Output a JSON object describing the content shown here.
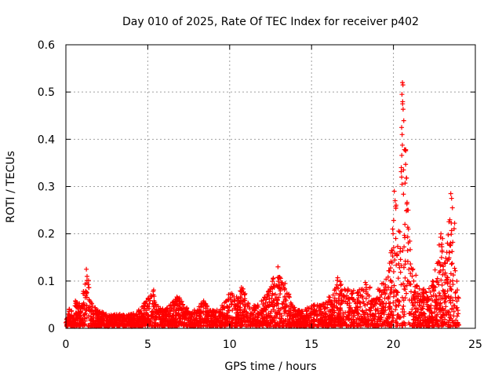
{
  "chart_data": {
    "type": "scatter",
    "title": "Day 010 of 2025, Rate Of TEC Index for receiver p402",
    "xlabel": "GPS time / hours",
    "ylabel": "ROTI / TECUs",
    "xlim": [
      0,
      25
    ],
    "ylim": [
      0,
      0.6
    ],
    "xticks": [
      "0",
      "5",
      "10",
      "15",
      "20",
      "25"
    ],
    "yticks": [
      "0",
      "0.1",
      "0.2",
      "0.3",
      "0.4",
      "0.5",
      "0.6"
    ],
    "grid": true,
    "marker": "+",
    "color": "#ff0000",
    "envelope": {
      "x": [
        0,
        0.3,
        0.6,
        0.9,
        1.2,
        1.35,
        1.6,
        2.0,
        2.5,
        3.0,
        3.5,
        4.0,
        4.5,
        4.9,
        5.1,
        5.3,
        5.6,
        6.0,
        6.4,
        6.8,
        7.1,
        7.5,
        8.0,
        8.4,
        8.8,
        9.2,
        9.6,
        10.0,
        10.3,
        10.8,
        11.2,
        11.6,
        12.0,
        12.4,
        12.8,
        13.0,
        13.4,
        13.8,
        14.2,
        14.6,
        15.0,
        15.4,
        15.8,
        16.2,
        16.6,
        17.0,
        17.4,
        17.8,
        18.2,
        18.6,
        19.0,
        19.4,
        19.7,
        19.9,
        20.1,
        20.3,
        20.6,
        20.9,
        21.2,
        21.6,
        22.0,
        22.3,
        22.6,
        22.9,
        23.2,
        23.5,
        23.7,
        23.9,
        24.0
      ],
      "y": [
        0.03,
        0.05,
        0.06,
        0.05,
        0.1,
        0.12,
        0.05,
        0.04,
        0.03,
        0.03,
        0.03,
        0.03,
        0.04,
        0.06,
        0.07,
        0.09,
        0.05,
        0.04,
        0.05,
        0.07,
        0.06,
        0.04,
        0.04,
        0.06,
        0.04,
        0.04,
        0.05,
        0.08,
        0.07,
        0.09,
        0.05,
        0.05,
        0.06,
        0.08,
        0.12,
        0.11,
        0.1,
        0.05,
        0.04,
        0.04,
        0.05,
        0.05,
        0.06,
        0.07,
        0.11,
        0.09,
        0.08,
        0.08,
        0.1,
        0.09,
        0.08,
        0.1,
        0.12,
        0.18,
        0.29,
        0.22,
        0.52,
        0.24,
        0.13,
        0.09,
        0.08,
        0.09,
        0.16,
        0.2,
        0.15,
        0.28,
        0.26,
        0.12,
        0.06
      ]
    },
    "peaks": [
      {
        "x": 20.55,
        "y": 0.52
      },
      {
        "x": 20.58,
        "y": 0.515
      },
      {
        "x": 20.52,
        "y": 0.495
      },
      {
        "x": 20.56,
        "y": 0.475
      },
      {
        "x": 20.5,
        "y": 0.425
      },
      {
        "x": 20.53,
        "y": 0.41
      },
      {
        "x": 20.48,
        "y": 0.34
      },
      {
        "x": 20.5,
        "y": 0.32
      },
      {
        "x": 20.05,
        "y": 0.29
      },
      {
        "x": 20.1,
        "y": 0.27
      },
      {
        "x": 23.5,
        "y": 0.285
      },
      {
        "x": 23.55,
        "y": 0.275
      },
      {
        "x": 23.6,
        "y": 0.255
      },
      {
        "x": 20.9,
        "y": 0.25
      },
      {
        "x": 22.9,
        "y": 0.2
      },
      {
        "x": 23.0,
        "y": 0.19
      },
      {
        "x": 1.25,
        "y": 0.125
      },
      {
        "x": 12.95,
        "y": 0.13
      },
      {
        "x": 19.95,
        "y": 0.21
      },
      {
        "x": 20.7,
        "y": 0.22
      }
    ]
  }
}
